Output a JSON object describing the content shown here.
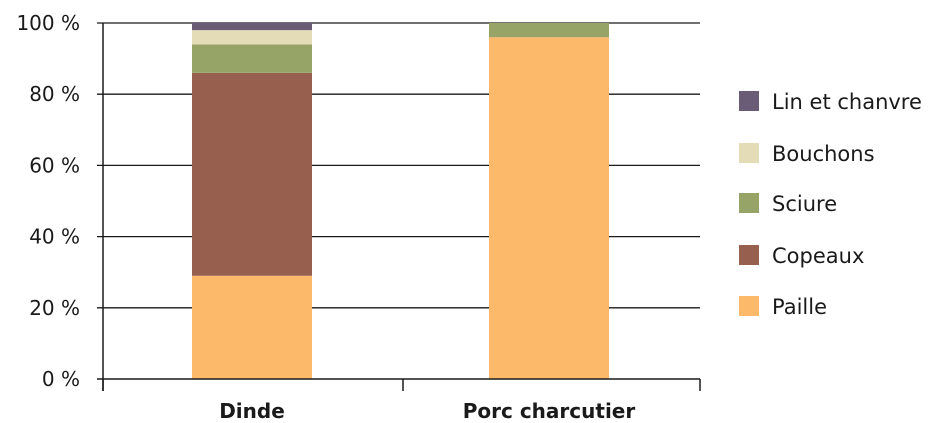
{
  "chart_data": {
    "type": "bar",
    "stacked": true,
    "categories": [
      "Dinde",
      "Porc charcutier"
    ],
    "series": [
      {
        "name": "Paille",
        "values": [
          29,
          96
        ],
        "color": "#fbb969"
      },
      {
        "name": "Copeaux",
        "values": [
          57,
          0
        ],
        "color": "#965f4e"
      },
      {
        "name": "Sciure",
        "values": [
          8,
          4
        ],
        "color": "#97a467"
      },
      {
        "name": "Bouchons",
        "values": [
          4,
          0
        ],
        "color": "#e4dcb6"
      },
      {
        "name": "Lin et chanvre",
        "values": [
          2,
          0
        ],
        "color": "#6a5b76"
      }
    ],
    "ylim": [
      0,
      100
    ],
    "yticks": [
      0,
      20,
      40,
      60,
      80,
      100
    ],
    "ytick_labels": [
      "0 %",
      "20 %",
      "40 %",
      "60 %",
      "80 %",
      "100 %"
    ],
    "xlabel": "",
    "ylabel": "",
    "title": "",
    "grid": true,
    "legend": {
      "placement": "right",
      "entries": [
        "Lin et chanvre",
        "Bouchons",
        "Sciure",
        "Copeaux",
        "Paille"
      ]
    },
    "colors": {
      "axis": "#1a1a1a",
      "grid": "#1a1a1a"
    }
  }
}
